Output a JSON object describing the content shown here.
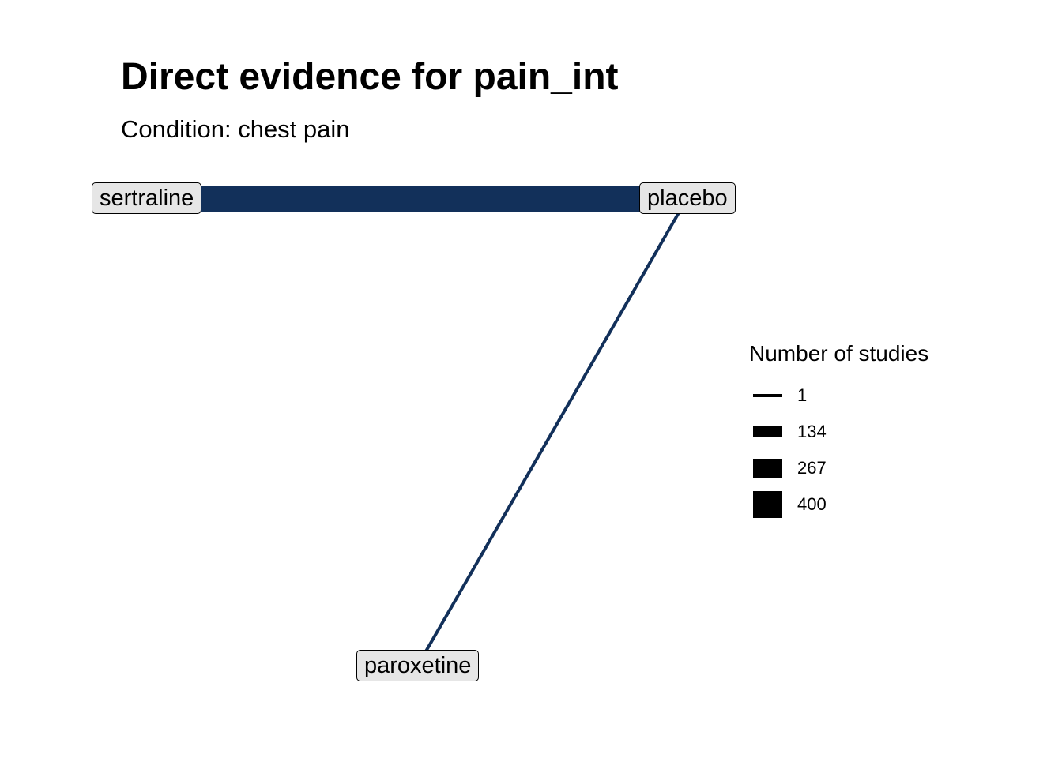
{
  "title": "Direct evidence for pain_int",
  "subtitle": "Condition: chest pain",
  "colors": {
    "edge": "#12305a",
    "node_fill": "#e6e6e6",
    "node_border": "#000000",
    "legend_key": "#000000"
  },
  "nodes": [
    {
      "id": "sertraline",
      "label": "sertraline"
    },
    {
      "id": "placebo",
      "label": "placebo"
    },
    {
      "id": "paroxetine",
      "label": "paroxetine"
    }
  ],
  "edges": [
    {
      "from": "sertraline",
      "to": "placebo",
      "studies": 400
    },
    {
      "from": "placebo",
      "to": "paroxetine",
      "studies": 1
    }
  ],
  "legend": {
    "title": "Number of studies",
    "items": [
      {
        "label": "1",
        "value": 1
      },
      {
        "label": "134",
        "value": 134
      },
      {
        "label": "267",
        "value": 267
      },
      {
        "label": "400",
        "value": 400
      }
    ]
  }
}
